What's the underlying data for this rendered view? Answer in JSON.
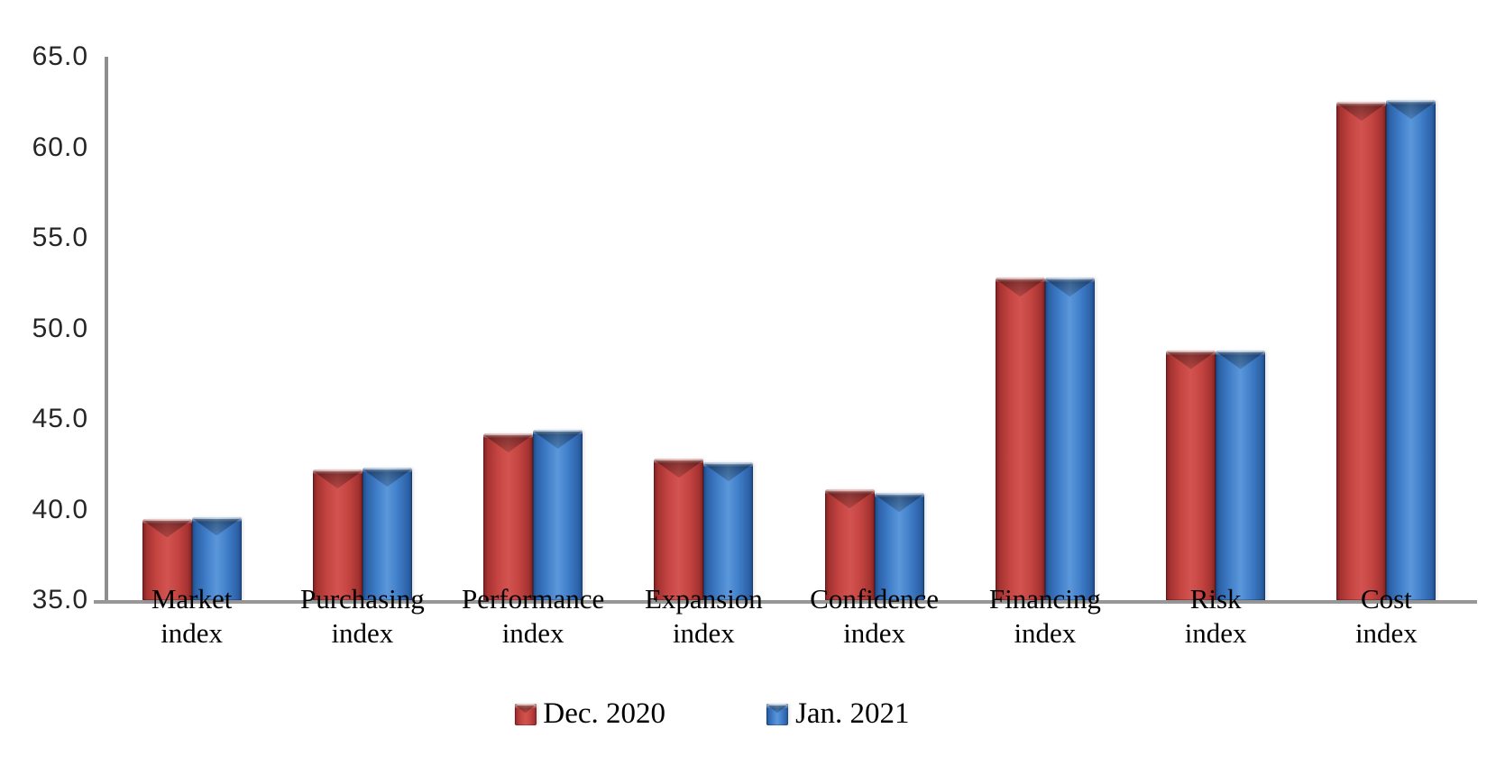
{
  "chart_data": {
    "type": "bar",
    "title": "",
    "xlabel": "",
    "ylabel": "",
    "categories": [
      "Market index",
      "Purchasing index",
      "Performance index",
      "Expansion index",
      "Confidence index",
      "Financing index",
      "Risk index",
      "Cost index"
    ],
    "series": [
      {
        "name": "Dec. 2020",
        "color": "#be3b3b",
        "values": [
          39.5,
          42.2,
          44.2,
          42.8,
          41.1,
          52.8,
          48.8,
          62.5
        ]
      },
      {
        "name": "Jan. 2021",
        "color": "#3e7cc7",
        "values": [
          39.6,
          42.3,
          44.4,
          42.6,
          40.9,
          52.8,
          48.8,
          62.6
        ]
      }
    ],
    "ylim": [
      35,
      65
    ],
    "ytick_labels": [
      "35.0",
      "40.0",
      "45.0",
      "50.0",
      "55.0",
      "60.0",
      "65.0"
    ],
    "grid": false,
    "legend_position": "bottom",
    "bar_style": "3d-bevel"
  },
  "colors": {
    "axis": "#8e8e8e",
    "baseline": "#979797",
    "tick_text": "#262626",
    "label_text": "#000000",
    "background": "#ffffff"
  }
}
